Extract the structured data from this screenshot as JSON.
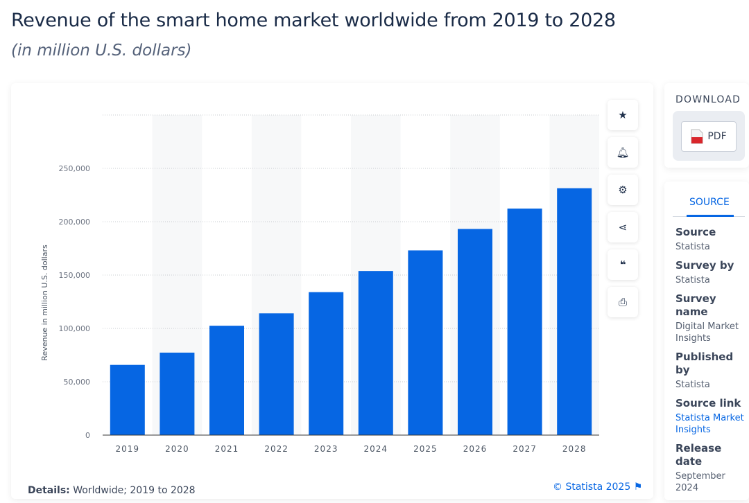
{
  "header": {
    "title": "Revenue of the smart home market worldwide from 2019 to 2028",
    "subtitle": "(in million U.S. dollars)"
  },
  "chart_data": {
    "type": "bar",
    "title": "Revenue of the smart home market worldwide from 2019 to 2028",
    "xlabel": "",
    "ylabel": "Revenue in million U.S. dollars",
    "categories": [
      "2019",
      "2020",
      "2021",
      "2022",
      "2023",
      "2024",
      "2025",
      "2026",
      "2027",
      "2028"
    ],
    "values": [
      65800,
      77300,
      102500,
      114100,
      134000,
      153800,
      173100,
      193200,
      212300,
      231400
    ],
    "ylim": [
      0,
      300000
    ],
    "yticks": [
      0,
      50000,
      100000,
      150000,
      200000,
      250000
    ],
    "ytick_labels": [
      "0",
      "50,000",
      "100,000",
      "150,000",
      "200,000",
      "250,000"
    ],
    "grid": true,
    "bar_color": "#0666e3"
  },
  "footer": {
    "details_label": "Details:",
    "details_text": "Worldwide; 2019 to 2028",
    "credit": "© Statista 2025"
  },
  "toolbar": {
    "icons": [
      "star-icon",
      "bell-icon",
      "gear-icon",
      "share-icon",
      "quote-icon",
      "print-icon"
    ]
  },
  "download": {
    "label": "DOWNLOAD",
    "pdf": "PDF"
  },
  "source_panel": {
    "tab": "SOURCE",
    "fields": [
      {
        "label": "Source",
        "value": "Statista"
      },
      {
        "label": "Survey by",
        "value": "Statista"
      },
      {
        "label": "Survey name",
        "value": "Digital Market Insights"
      },
      {
        "label": "Published by",
        "value": "Statista"
      },
      {
        "label": "Source link",
        "value": "Statista Market Insights"
      },
      {
        "label": "Release date",
        "value": "September 2024"
      }
    ]
  }
}
